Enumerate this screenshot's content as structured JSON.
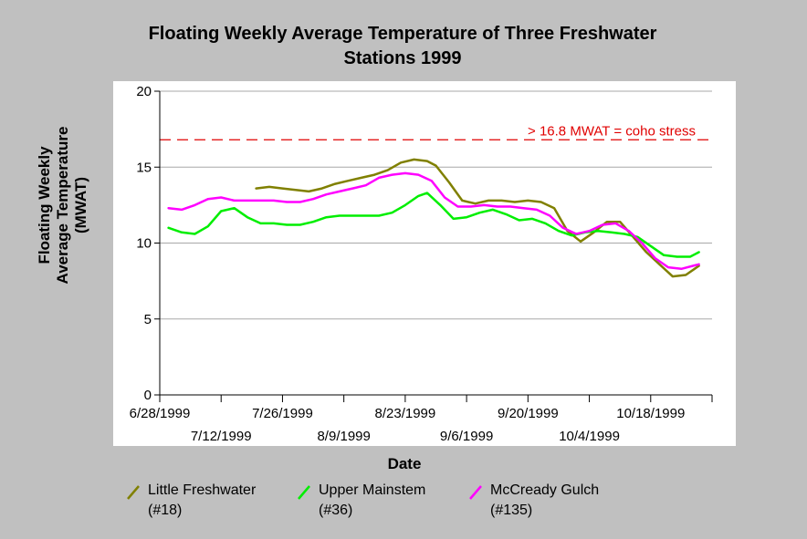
{
  "chart_data": {
    "type": "line",
    "title_line1": "Floating Weekly Average Temperature of Three Freshwater",
    "title_line2": "Stations 1999",
    "xlabel": "Date",
    "ylabel_line1": "Floating Weekly",
    "ylabel_line2": "Average Temperature",
    "ylabel_line3": "(MWAT)",
    "ylim": [
      0,
      20
    ],
    "yticks": [
      0,
      5,
      10,
      15,
      20
    ],
    "xlim": [
      "1999-06-28",
      "1999-11-01"
    ],
    "xticks_upper": [
      "6/28/1999",
      "7/26/1999",
      "8/23/1999",
      "9/20/1999",
      "10/18/1999"
    ],
    "xticks_lower": [
      "7/12/1999",
      "8/9/1999",
      "9/6/1999",
      "10/4/1999"
    ],
    "grid": "horizontal",
    "threshold": {
      "value": 16.8,
      "label": "> 16.8 MWAT = coho stress",
      "color": "#e00000"
    },
    "series": [
      {
        "name": "Little Freshwater",
        "code": "(#18)",
        "color": "#808000",
        "points": [
          [
            "1999-07-20",
            13.6
          ],
          [
            "1999-07-23",
            13.7
          ],
          [
            "1999-07-26",
            13.6
          ],
          [
            "1999-07-29",
            13.5
          ],
          [
            "1999-08-01",
            13.4
          ],
          [
            "1999-08-04",
            13.6
          ],
          [
            "1999-08-07",
            13.9
          ],
          [
            "1999-08-10",
            14.1
          ],
          [
            "1999-08-13",
            14.3
          ],
          [
            "1999-08-16",
            14.5
          ],
          [
            "1999-08-19",
            14.8
          ],
          [
            "1999-08-22",
            15.3
          ],
          [
            "1999-08-25",
            15.5
          ],
          [
            "1999-08-28",
            15.4
          ],
          [
            "1999-08-30",
            15.1
          ],
          [
            "1999-09-02",
            14.0
          ],
          [
            "1999-09-05",
            12.8
          ],
          [
            "1999-09-08",
            12.6
          ],
          [
            "1999-09-11",
            12.8
          ],
          [
            "1999-09-14",
            12.8
          ],
          [
            "1999-09-17",
            12.7
          ],
          [
            "1999-09-20",
            12.8
          ],
          [
            "1999-09-23",
            12.7
          ],
          [
            "1999-09-26",
            12.3
          ],
          [
            "1999-09-29",
            10.8
          ],
          [
            "1999-10-02",
            10.1
          ],
          [
            "1999-10-05",
            10.7
          ],
          [
            "1999-10-08",
            11.4
          ],
          [
            "1999-10-11",
            11.4
          ],
          [
            "1999-10-14",
            10.4
          ],
          [
            "1999-10-17",
            9.4
          ],
          [
            "1999-10-20",
            8.6
          ],
          [
            "1999-10-23",
            7.8
          ],
          [
            "1999-10-26",
            7.9
          ],
          [
            "1999-10-29",
            8.5
          ]
        ]
      },
      {
        "name": "Upper Mainstem",
        "code": "(#36)",
        "color": "#00ee00",
        "points": [
          [
            "1999-06-30",
            11.0
          ],
          [
            "1999-07-03",
            10.7
          ],
          [
            "1999-07-06",
            10.6
          ],
          [
            "1999-07-09",
            11.1
          ],
          [
            "1999-07-12",
            12.1
          ],
          [
            "1999-07-15",
            12.3
          ],
          [
            "1999-07-18",
            11.7
          ],
          [
            "1999-07-21",
            11.3
          ],
          [
            "1999-07-24",
            11.3
          ],
          [
            "1999-07-27",
            11.2
          ],
          [
            "1999-07-30",
            11.2
          ],
          [
            "1999-08-02",
            11.4
          ],
          [
            "1999-08-05",
            11.7
          ],
          [
            "1999-08-08",
            11.8
          ],
          [
            "1999-08-11",
            11.8
          ],
          [
            "1999-08-14",
            11.8
          ],
          [
            "1999-08-17",
            11.8
          ],
          [
            "1999-08-20",
            12.0
          ],
          [
            "1999-08-23",
            12.5
          ],
          [
            "1999-08-26",
            13.1
          ],
          [
            "1999-08-28",
            13.3
          ],
          [
            "1999-08-31",
            12.5
          ],
          [
            "1999-09-03",
            11.6
          ],
          [
            "1999-09-06",
            11.7
          ],
          [
            "1999-09-09",
            12.0
          ],
          [
            "1999-09-12",
            12.2
          ],
          [
            "1999-09-15",
            11.9
          ],
          [
            "1999-09-18",
            11.5
          ],
          [
            "1999-09-21",
            11.6
          ],
          [
            "1999-09-24",
            11.3
          ],
          [
            "1999-09-27",
            10.8
          ],
          [
            "1999-09-30",
            10.5
          ],
          [
            "1999-10-03",
            10.7
          ],
          [
            "1999-10-06",
            10.8
          ],
          [
            "1999-10-09",
            10.7
          ],
          [
            "1999-10-12",
            10.6
          ],
          [
            "1999-10-15",
            10.4
          ],
          [
            "1999-10-18",
            9.8
          ],
          [
            "1999-10-21",
            9.2
          ],
          [
            "1999-10-24",
            9.1
          ],
          [
            "1999-10-27",
            9.1
          ],
          [
            "1999-10-29",
            9.4
          ]
        ]
      },
      {
        "name": "McCready Gulch",
        "code": "(#135)",
        "color": "#ff00ff",
        "points": [
          [
            "1999-06-30",
            12.3
          ],
          [
            "1999-07-03",
            12.2
          ],
          [
            "1999-07-06",
            12.5
          ],
          [
            "1999-07-09",
            12.9
          ],
          [
            "1999-07-12",
            13.0
          ],
          [
            "1999-07-15",
            12.8
          ],
          [
            "1999-07-18",
            12.8
          ],
          [
            "1999-07-21",
            12.8
          ],
          [
            "1999-07-24",
            12.8
          ],
          [
            "1999-07-27",
            12.7
          ],
          [
            "1999-07-30",
            12.7
          ],
          [
            "1999-08-02",
            12.9
          ],
          [
            "1999-08-05",
            13.2
          ],
          [
            "1999-08-08",
            13.4
          ],
          [
            "1999-08-11",
            13.6
          ],
          [
            "1999-08-14",
            13.8
          ],
          [
            "1999-08-17",
            14.3
          ],
          [
            "1999-08-20",
            14.5
          ],
          [
            "1999-08-23",
            14.6
          ],
          [
            "1999-08-26",
            14.5
          ],
          [
            "1999-08-29",
            14.1
          ],
          [
            "1999-09-01",
            13.0
          ],
          [
            "1999-09-04",
            12.4
          ],
          [
            "1999-09-07",
            12.4
          ],
          [
            "1999-09-10",
            12.5
          ],
          [
            "1999-09-13",
            12.4
          ],
          [
            "1999-09-16",
            12.4
          ],
          [
            "1999-09-19",
            12.3
          ],
          [
            "1999-09-22",
            12.2
          ],
          [
            "1999-09-25",
            11.8
          ],
          [
            "1999-09-28",
            11.0
          ],
          [
            "1999-10-01",
            10.6
          ],
          [
            "1999-10-04",
            10.8
          ],
          [
            "1999-10-07",
            11.2
          ],
          [
            "1999-10-10",
            11.3
          ],
          [
            "1999-10-13",
            10.8
          ],
          [
            "1999-10-16",
            10.0
          ],
          [
            "1999-10-19",
            9.0
          ],
          [
            "1999-10-22",
            8.4
          ],
          [
            "1999-10-25",
            8.3
          ],
          [
            "1999-10-29",
            8.6
          ]
        ]
      }
    ]
  }
}
